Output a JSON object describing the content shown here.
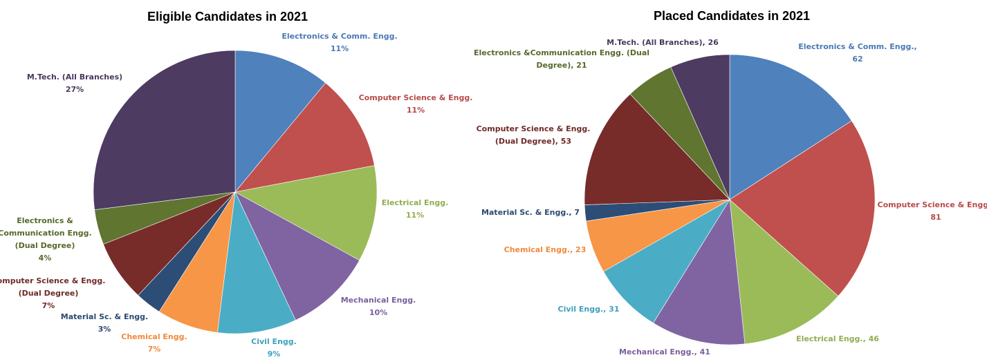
{
  "chart_data": [
    {
      "type": "pie",
      "title": "Eligible Candidates in 2021",
      "slices": [
        {
          "lines": [
            "Electronics & Comm. Engg.",
            "11%"
          ],
          "value": 11,
          "color": "#4f81bd",
          "label_color": "#4a79b4"
        },
        {
          "lines": [
            "Computer Science & Engg.",
            "11%"
          ],
          "value": 11,
          "color": "#c0504d",
          "label_color": "#b84a47"
        },
        {
          "lines": [
            "Electrical Engg.",
            "11%"
          ],
          "value": 11,
          "color": "#9bbb59",
          "label_color": "#8fae4f"
        },
        {
          "lines": [
            "Mechanical Engg.",
            "10%"
          ],
          "value": 10,
          "color": "#8064a2",
          "label_color": "#7a5f9c"
        },
        {
          "lines": [
            "Civil Engg.",
            "9%"
          ],
          "value": 9,
          "color": "#4bacc6",
          "label_color": "#3fa0bb"
        },
        {
          "lines": [
            "Chemical Engg.",
            "7%"
          ],
          "value": 7,
          "color": "#f79646",
          "label_color": "#f0893a"
        },
        {
          "lines": [
            "Material Sc. & Engg.",
            "3%"
          ],
          "value": 3,
          "color": "#2c4d75",
          "label_color": "#2b4a70"
        },
        {
          "lines": [
            "Computer Science & Engg.",
            "(Dual Degree)",
            "7%"
          ],
          "value": 7,
          "color": "#772c2a",
          "label_color": "#6e2a28"
        },
        {
          "lines": [
            "Electronics &",
            "Communication Engg.",
            "(Dual Degree)",
            "4%"
          ],
          "value": 4,
          "color": "#5f7530",
          "label_color": "#55692b"
        },
        {
          "lines": [
            "M.Tech. (All Branches)",
            "27%"
          ],
          "value": 27,
          "color": "#4d3b62",
          "label_color": "#48385c"
        }
      ]
    },
    {
      "type": "pie",
      "title": "Placed Candidates in 2021",
      "slices": [
        {
          "lines": [
            "Electronics & Comm. Engg.,",
            "62"
          ],
          "value": 62,
          "color": "#4f81bd",
          "label_color": "#4a79b4"
        },
        {
          "lines": [
            "Computer Science & Engg.,",
            "81"
          ],
          "value": 81,
          "color": "#c0504d",
          "label_color": "#b84a47"
        },
        {
          "lines": [
            "Electrical Engg., 46"
          ],
          "value": 46,
          "color": "#9bbb59",
          "label_color": "#8fae4f"
        },
        {
          "lines": [
            "Mechanical Engg., 41"
          ],
          "value": 41,
          "color": "#8064a2",
          "label_color": "#7a5f9c"
        },
        {
          "lines": [
            "Civil Engg., 31"
          ],
          "value": 31,
          "color": "#4bacc6",
          "label_color": "#3fa0bb"
        },
        {
          "lines": [
            "Chemical Engg., 23"
          ],
          "value": 23,
          "color": "#f79646",
          "label_color": "#f0893a"
        },
        {
          "lines": [
            "Material Sc. & Engg., 7"
          ],
          "value": 7,
          "color": "#2c4d75",
          "label_color": "#2b4a70"
        },
        {
          "lines": [
            "Computer Science & Engg.",
            "(Dual Degree), 53"
          ],
          "value": 53,
          "color": "#772c2a",
          "label_color": "#6e2a28"
        },
        {
          "lines": [
            "Electronics &Communication Engg. (Dual",
            "Degree), 21"
          ],
          "value": 21,
          "color": "#5f7530",
          "label_color": "#55692b"
        },
        {
          "lines": [
            "M.Tech. (All Branches), 26"
          ],
          "value": 26,
          "color": "#4d3b62",
          "label_color": "#48385c"
        }
      ]
    }
  ]
}
